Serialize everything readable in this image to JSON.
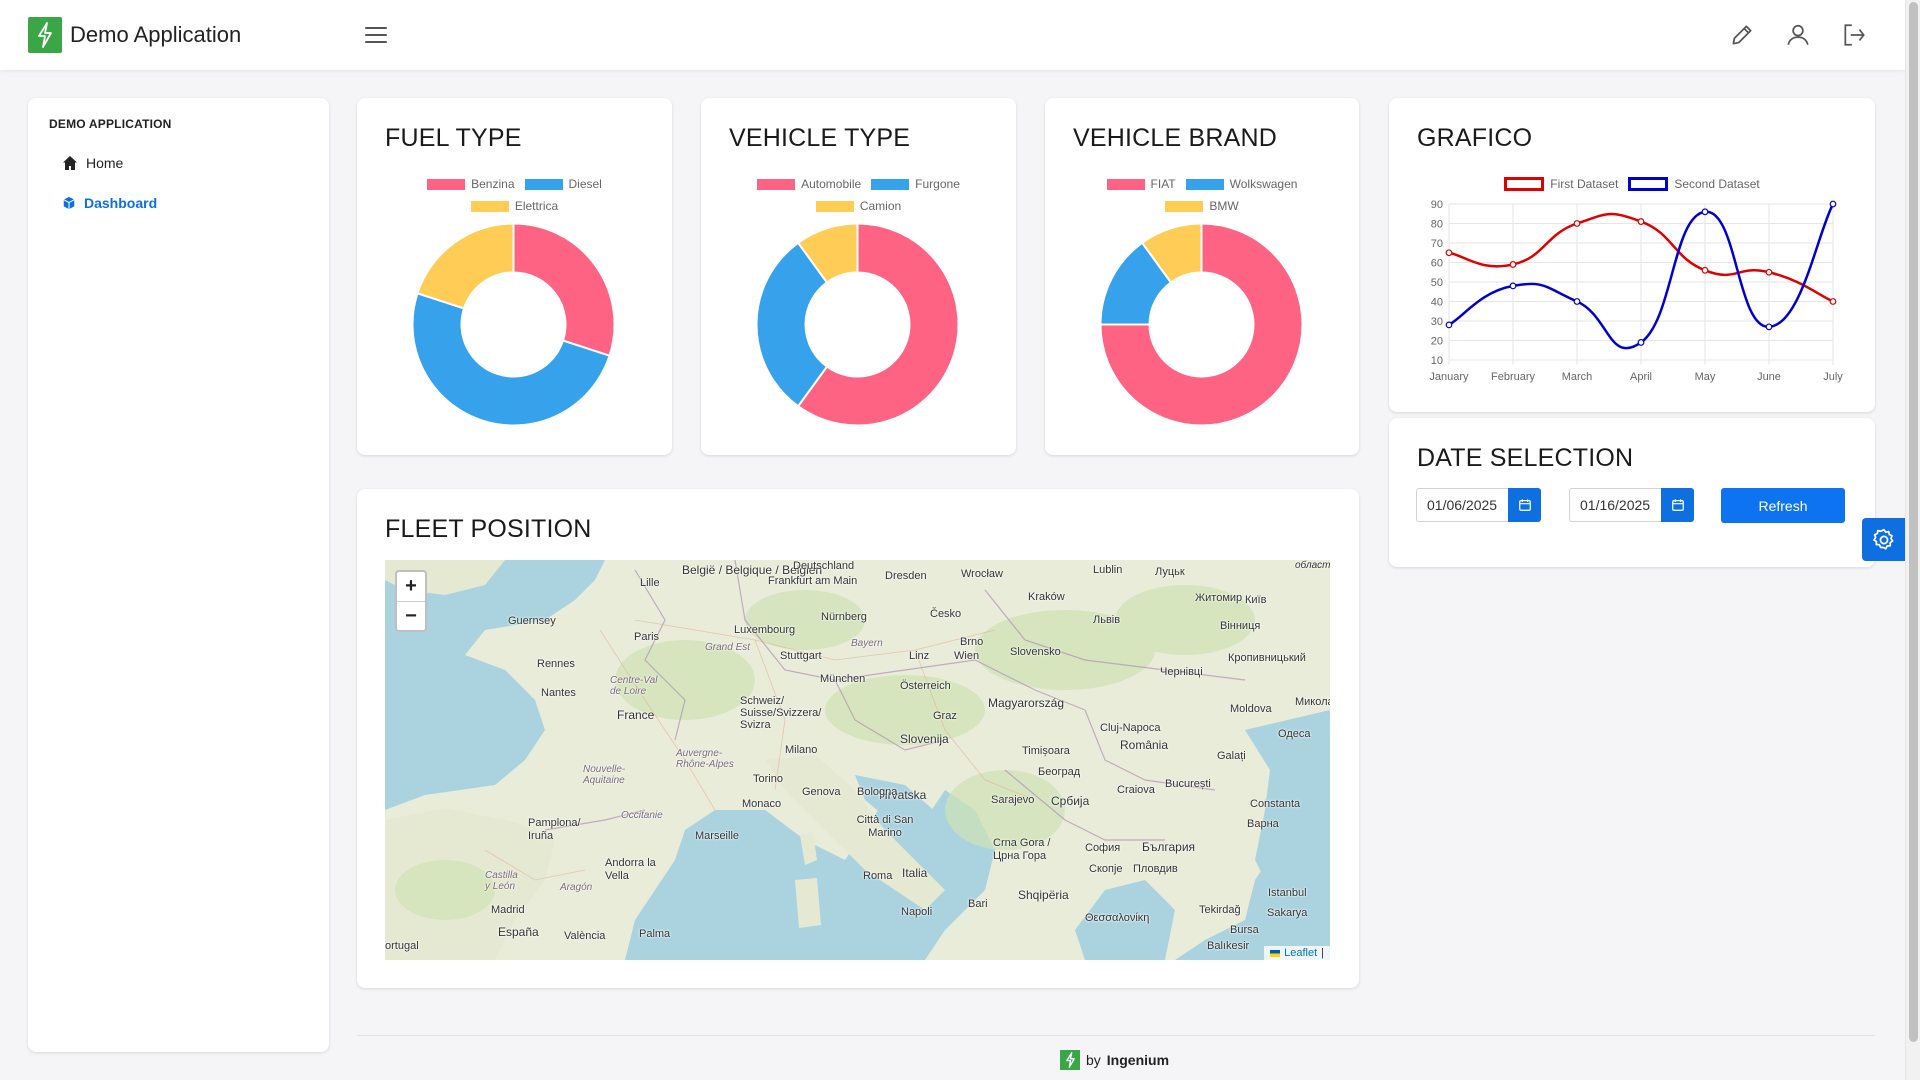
{
  "header": {
    "app_title": "Demo Application",
    "brand_color": "#3aa645"
  },
  "sidebar": {
    "title": "DEMO APPLICATION",
    "items": [
      {
        "label": "Home",
        "icon": "home-icon",
        "active": false
      },
      {
        "label": "Dashboard",
        "icon": "cube-icon",
        "active": true
      }
    ]
  },
  "cards": {
    "fuel": {
      "title": "FUEL TYPE",
      "chart_index": 0
    },
    "vehicle_type": {
      "title": "VEHICLE TYPE",
      "chart_index": 1
    },
    "vehicle_brand": {
      "title": "VEHICLE BRAND",
      "chart_index": 2
    },
    "grafico": {
      "title": "GRAFICO",
      "chart_index": 3
    },
    "date_selection": {
      "title": "DATE SELECTION",
      "start_date": "01/06/2025",
      "end_date": "01/16/2025",
      "refresh_label": "Refresh"
    },
    "fleet": {
      "title": "FLEET POSITION",
      "zoom_in": "+",
      "zoom_out": "−",
      "attribution": "Leaflet",
      "attribution_sep": "|",
      "map_labels": [
        "België / Belgique / Belgien",
        "Deutschland",
        "Frankfurt am Main",
        "Dresden",
        "Wrocław",
        "Lublin",
        "Луцьк",
        "Lille",
        "Guernsey",
        "Luxembourg",
        "Nürnberg",
        "Česko",
        "Kraków",
        "Житомир",
        "Київ",
        "Paris",
        "Grand Est",
        "Bayern",
        "Brno",
        "Львів",
        "Вінниця",
        "Rennes",
        "Stuttgart",
        "Linz",
        "Wien",
        "Slovensko",
        "Кропивницький",
        "Centre-Val de Loire",
        "München",
        "Österreich",
        "Nantes",
        "Schweiz/ Suisse/Svizzera/ Svizra",
        "Magyarország",
        "Чернівці",
        "France",
        "Graz",
        "Moldova",
        "Slovenija",
        "Cluj-Napoca",
        "Одеса",
        "Миколаїв",
        "Auvergne-Rhône-Alpes",
        "Milano",
        "Timișoara",
        "România",
        "Nouvelle-Aquitaine",
        "Galați",
        "Torino",
        "Hrvatska",
        "Београд",
        "Occitanie",
        "Genova",
        "Bologna",
        "Sarajevo",
        "Србија",
        "Craiova",
        "București",
        "Monaco",
        "Pamplona/ Iruña",
        "Città di San Marino",
        "Constanta",
        "Marseille",
        "Crna Gora / Црна Гора",
        "София",
        "България",
        "Варна",
        "Andorra la Vella",
        "Roma",
        "Italia",
        "Скопје",
        "Пловдив",
        "Castilla y León",
        "Aragón",
        "Shqipëria",
        "Madrid",
        "Napoli",
        "Bari",
        "Θεσσαλονίκη",
        "Tekirdağ",
        "Sakarya",
        "España",
        "València",
        "Palma",
        "Istanbul",
        "Bursa",
        "Balıkesir",
        "ortugal",
        "область"
      ]
    }
  },
  "chart_data": [
    {
      "type": "pie",
      "variant": "doughnut",
      "title": "FUEL TYPE",
      "labels": [
        "Benzina",
        "Diesel",
        "Elettrica"
      ],
      "values": [
        30,
        50,
        20
      ],
      "colors": [
        "#ff6384",
        "#36a2eb",
        "#ffcd56"
      ]
    },
    {
      "type": "pie",
      "variant": "doughnut",
      "title": "VEHICLE TYPE",
      "labels": [
        "Automobile",
        "Furgone",
        "Camion"
      ],
      "values": [
        60,
        30,
        10
      ],
      "colors": [
        "#ff6384",
        "#36a2eb",
        "#ffcd56"
      ]
    },
    {
      "type": "pie",
      "variant": "doughnut",
      "title": "VEHICLE BRAND",
      "labels": [
        "FIAT",
        "Wolkswagen",
        "BMW"
      ],
      "values": [
        75,
        15,
        10
      ],
      "colors": [
        "#ff6384",
        "#36a2eb",
        "#ffcd56"
      ]
    },
    {
      "type": "line",
      "title": "GRAFICO",
      "categories": [
        "January",
        "February",
        "March",
        "April",
        "May",
        "June",
        "July"
      ],
      "series": [
        {
          "name": "First Dataset",
          "values": [
            65,
            59,
            80,
            81,
            56,
            55,
            40
          ],
          "color": "#e00000"
        },
        {
          "name": "Second Dataset",
          "values": [
            28,
            48,
            40,
            19,
            86,
            27,
            90
          ],
          "color": "#0000d0"
        }
      ],
      "yticks": [
        10,
        20,
        30,
        40,
        50,
        60,
        70,
        80,
        90
      ],
      "ylim": [
        10,
        90
      ],
      "grid": true,
      "legend": "top"
    }
  ],
  "footer": {
    "by": "by",
    "company": "Ingenium"
  },
  "colors": {
    "accent": "#0d6fe0",
    "chart_red": "#ff6384",
    "chart_blue": "#36a2eb",
    "chart_yellow": "#ffcd56"
  }
}
